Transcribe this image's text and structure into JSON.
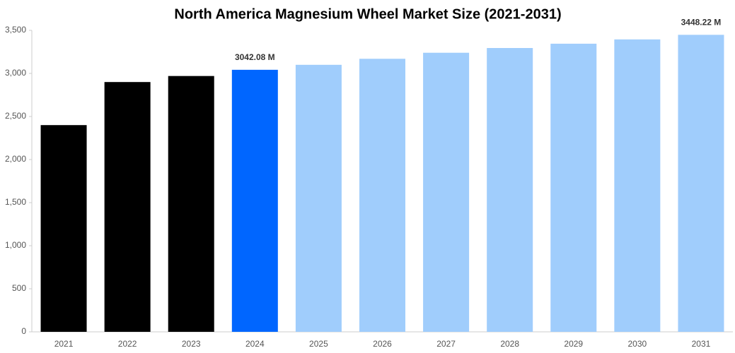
{
  "chart_data": {
    "type": "bar",
    "title": "North America Magnesium Wheel Market Size (2021-2031)",
    "categories": [
      "2021",
      "2022",
      "2023",
      "2024",
      "2025",
      "2026",
      "2027",
      "2028",
      "2029",
      "2030",
      "2031"
    ],
    "values": [
      2400,
      2900,
      2970,
      3042.08,
      3100,
      3170,
      3240,
      3295,
      3345,
      3395,
      3448.22
    ],
    "value_labels": [
      null,
      null,
      null,
      "3042.08 M",
      null,
      null,
      null,
      null,
      null,
      null,
      "3448.22 M"
    ],
    "colors": [
      "#000000",
      "#000000",
      "#000000",
      "#0066ff",
      "#a0cdfc",
      "#a0cdfc",
      "#a0cdfc",
      "#a0cdfc",
      "#a0cdfc",
      "#a0cdfc",
      "#a0cdfc"
    ],
    "ylim": [
      0,
      3500
    ],
    "yticks": [
      0,
      500,
      {
        "value": 1000,
        "label": "1,000"
      },
      {
        "value": 1500,
        "label": "1,500"
      },
      {
        "value": 2000,
        "label": "2,000"
      },
      {
        "value": 2500,
        "label": "2,500"
      },
      {
        "value": 3000,
        "label": "3,000"
      },
      {
        "value": 3500,
        "label": "3,500"
      }
    ],
    "grid": false
  }
}
